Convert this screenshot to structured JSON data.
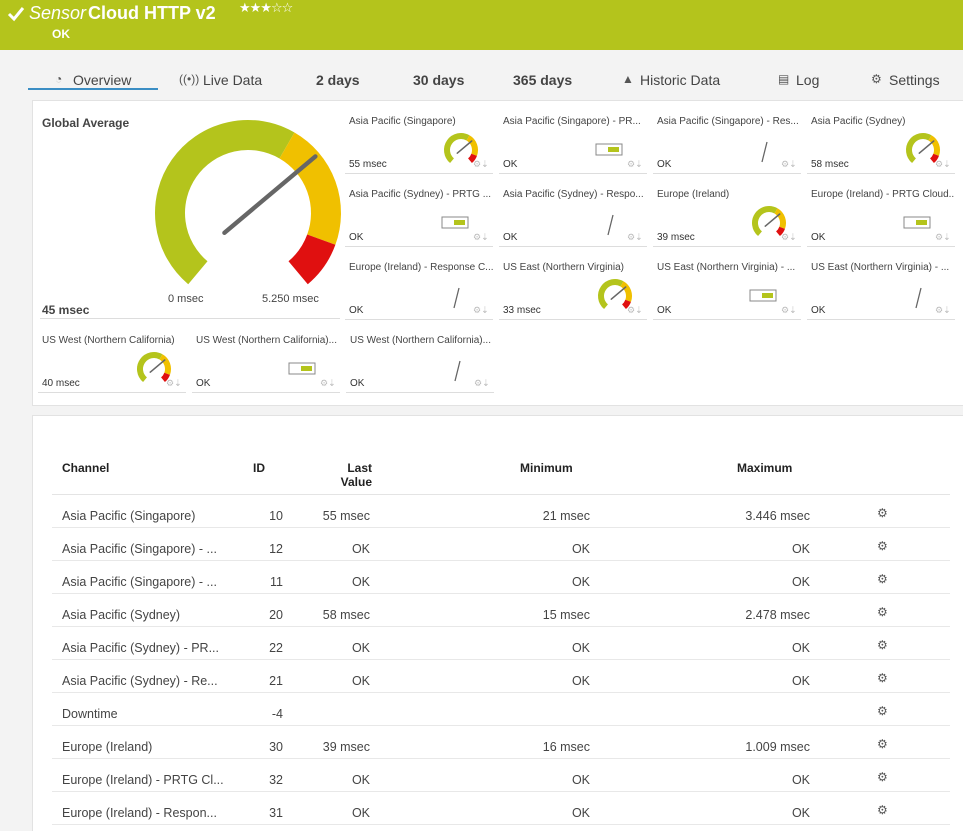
{
  "header": {
    "prefix": "Sensor",
    "title": "Cloud HTTP v2",
    "status": "OK"
  },
  "tabs": [
    "Overview",
    "Live Data",
    "2  days",
    "30 days",
    "365 days",
    "Historic Data",
    "Log",
    "Settings"
  ],
  "global": {
    "title": "Global Average",
    "value": "45 msec",
    "min": "0 msec",
    "max": "5.250 msec"
  },
  "tiles": [
    {
      "title": "Asia Pacific (Singapore)",
      "value": "55 msec",
      "kind": "gauge"
    },
    {
      "title": "Asia Pacific (Singapore) - PR...",
      "value": "OK",
      "kind": "toggle"
    },
    {
      "title": "Asia Pacific (Singapore) - Res...",
      "value": "OK",
      "kind": "line"
    },
    {
      "title": "Asia Pacific (Sydney)",
      "value": "58 msec",
      "kind": "gauge"
    },
    {
      "title": "Asia Pacific (Sydney) - PRTG ...",
      "value": "OK",
      "kind": "toggle"
    },
    {
      "title": "Asia Pacific (Sydney) - Respo...",
      "value": "OK",
      "kind": "line"
    },
    {
      "title": "Europe (Ireland)",
      "value": "39 msec",
      "kind": "gauge"
    },
    {
      "title": "Europe (Ireland) - PRTG Cloud...",
      "value": "OK",
      "kind": "toggle"
    },
    {
      "title": "Europe (Ireland) - Response C...",
      "value": "OK",
      "kind": "line"
    },
    {
      "title": "US East (Northern Virginia)",
      "value": "33 msec",
      "kind": "gauge"
    },
    {
      "title": "US East (Northern Virginia) - ...",
      "value": "OK",
      "kind": "toggle"
    },
    {
      "title": "US East (Northern Virginia) - ...",
      "value": "OK",
      "kind": "line"
    },
    {
      "title": "US West (Northern California)",
      "value": "40 msec",
      "kind": "gauge"
    },
    {
      "title": "US West (Northern California)...",
      "value": "OK",
      "kind": "toggle"
    },
    {
      "title": "US West (Northern California)...",
      "value": "OK",
      "kind": "line"
    }
  ],
  "table": {
    "columns": [
      "Channel",
      "ID",
      "Last Value",
      "Minimum",
      "Maximum"
    ],
    "rows": [
      [
        "Asia Pacific (Singapore)",
        "10",
        "55 msec",
        "21 msec",
        "3.446 msec"
      ],
      [
        "Asia Pacific (Singapore) - ...",
        "12",
        "OK",
        "OK",
        "OK"
      ],
      [
        "Asia Pacific (Singapore) - ...",
        "11",
        "OK",
        "OK",
        "OK"
      ],
      [
        "Asia Pacific (Sydney)",
        "20",
        "58 msec",
        "15 msec",
        "2.478 msec"
      ],
      [
        "Asia Pacific (Sydney) - PR...",
        "22",
        "OK",
        "OK",
        "OK"
      ],
      [
        "Asia Pacific (Sydney) - Re...",
        "21",
        "OK",
        "OK",
        "OK"
      ],
      [
        "Downtime",
        "-4",
        null,
        null,
        null
      ],
      [
        "Europe (Ireland)",
        "30",
        "39 msec",
        "16 msec",
        "1.009 msec"
      ],
      [
        "Europe (Ireland) - PRTG Cl...",
        "32",
        "OK",
        "OK",
        "OK"
      ],
      [
        "Europe (Ireland) - Respon...",
        "31",
        "OK",
        "OK",
        "OK"
      ]
    ]
  }
}
